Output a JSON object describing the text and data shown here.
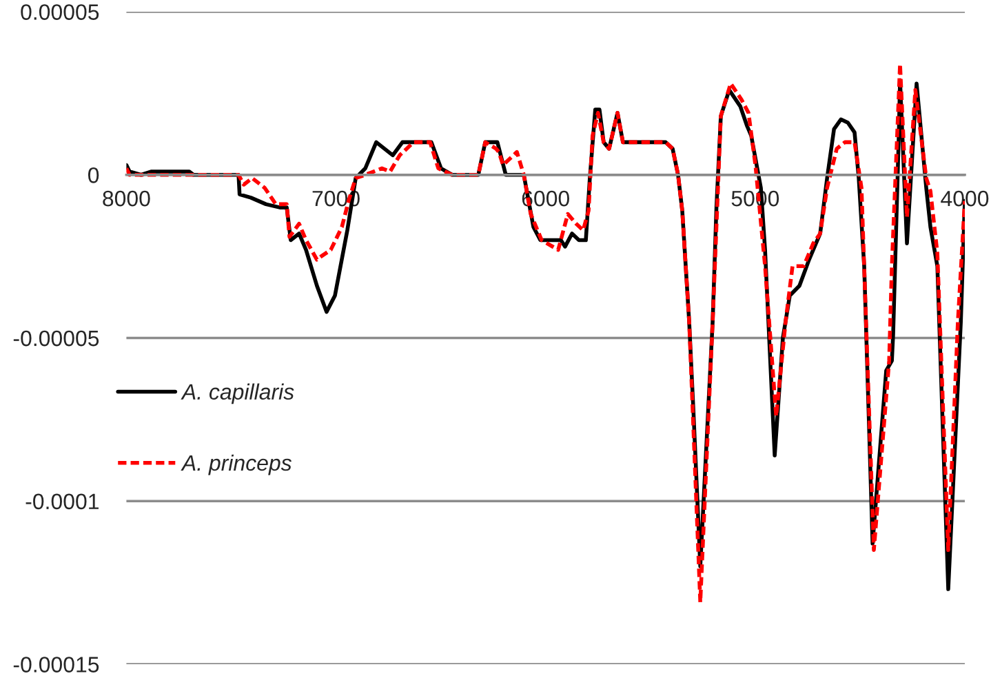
{
  "chart_data": {
    "type": "line",
    "xlim": [
      8000,
      4000
    ],
    "xticks": [
      8000,
      7000,
      6000,
      5000,
      4000
    ],
    "ylim": [
      -0.00015,
      5e-05
    ],
    "yticks": [
      {
        "value": 5e-05,
        "label": "0.00005"
      },
      0,
      {
        "value": -5e-05,
        "label": "-0.00005"
      },
      -0.0001,
      -0.00015
    ],
    "grid": "y",
    "legend": "left",
    "series": [
      {
        "name": "A. capillaris",
        "color": "#000000",
        "line_style": "solid",
        "x": [
          8000,
          7985,
          7930,
          7880,
          7700,
          7680,
          7465,
          7460,
          7406,
          7334,
          7268,
          7235,
          7216,
          7176,
          7143,
          7091,
          7045,
          7005,
          6946,
          6906,
          6860,
          6808,
          6729,
          6683,
          6545,
          6499,
          6446,
          6321,
          6288,
          6230,
          6190,
          6104,
          6058,
          6025,
          5927,
          5907,
          5874,
          5841,
          5808,
          5789,
          5763,
          5743,
          5723,
          5697,
          5657,
          5631,
          5427,
          5394,
          5368,
          5348,
          5315,
          5295,
          5262,
          5203,
          5185,
          5164,
          5124,
          5071,
          5039,
          5019,
          4973,
          4953,
          4907,
          4868,
          4835,
          4789,
          4743,
          4710,
          4690,
          4657,
          4624,
          4591,
          4558,
          4526,
          4506,
          4480,
          4440,
          4375,
          4348,
          4342,
          4315,
          4309,
          4276,
          4230,
          4184,
          4164,
          4131,
          4079,
          4019,
          4000
        ],
        "values": [
          3e-06,
          1e-06,
          0,
          1e-06,
          1e-06,
          0,
          0,
          -6e-06,
          -7e-06,
          -9e-06,
          -1e-05,
          -1e-05,
          -2e-05,
          -1.8e-05,
          -2.3e-05,
          -3.4e-05,
          -4.2e-05,
          -3.7e-05,
          -1.7e-05,
          -1e-06,
          2e-06,
          1e-05,
          6e-06,
          1e-05,
          1e-05,
          2e-06,
          0,
          0,
          1e-05,
          1e-05,
          0,
          0,
          -1.6e-05,
          -2e-05,
          -2e-05,
          -2.2e-05,
          -1.8e-05,
          -2e-05,
          -2e-05,
          -1e-06,
          2e-05,
          2e-05,
          1e-05,
          8e-06,
          1.9e-05,
          1e-05,
          1e-05,
          8e-06,
          0,
          -1.1e-05,
          -4.5e-05,
          -7.2e-05,
          -0.00012,
          -4.5e-05,
          -1e-05,
          1.8e-05,
          2.6e-05,
          2.1e-05,
          1.5e-05,
          1.2e-05,
          -4e-06,
          -2.3e-05,
          -8.6e-05,
          -5e-05,
          -3.7e-05,
          -3.4e-05,
          -2.6e-05,
          -2.1e-05,
          -1.8e-05,
          -1e-06,
          1.4e-05,
          1.7e-05,
          1.6e-05,
          1.3e-05,
          -1e-06,
          -2.8e-05,
          -0.000113,
          -6e-05,
          -5.7e-05,
          -4.9e-05,
          1.2e-05,
          2.9e-05,
          -2.1e-05,
          2.8e-05,
          -4e-06,
          -1.6e-05,
          -2.8e-05,
          -0.000127,
          -4.5e-05,
          -8e-06
        ]
      },
      {
        "name": "A. princeps",
        "color": "#ff0000",
        "line_style": "dashed",
        "x": [
          8000,
          7985,
          7900,
          7700,
          7465,
          7440,
          7400,
          7340,
          7287,
          7235,
          7222,
          7176,
          7143,
          7091,
          7071,
          7025,
          6972,
          6940,
          6906,
          6860,
          6781,
          6742,
          6696,
          6630,
          6551,
          6512,
          6446,
          6321,
          6288,
          6236,
          6223,
          6203,
          6137,
          6104,
          6071,
          6019,
          5940,
          5894,
          5854,
          5821,
          5795,
          5776,
          5750,
          5723,
          5697,
          5657,
          5631,
          5427,
          5394,
          5368,
          5348,
          5315,
          5262,
          5203,
          5164,
          5117,
          5065,
          5032,
          4999,
          4953,
          4900,
          4855,
          4822,
          4769,
          4723,
          4690,
          4657,
          4611,
          4572,
          4526,
          4493,
          4434,
          4361,
          4348,
          4309,
          4276,
          4236,
          4184,
          4164,
          4131,
          4079,
          4033,
          4000
        ],
        "values": [
          2e-06,
          0,
          0,
          0,
          0,
          -3e-06,
          -1e-06,
          -4e-06,
          -9e-06,
          -9e-06,
          -1.9e-05,
          -1.5e-05,
          -2e-05,
          -2.6e-05,
          -2.5e-05,
          -2.3e-05,
          -1.6e-05,
          -8e-06,
          -1e-06,
          0,
          2e-06,
          1e-06,
          6e-06,
          1e-05,
          1e-05,
          2e-06,
          0,
          0,
          1e-05,
          8e-06,
          7e-06,
          3e-06,
          7e-06,
          0,
          -1.2e-05,
          -2e-05,
          -2.3e-05,
          -1.2e-05,
          -1.5e-05,
          -1.7e-05,
          -1.1e-05,
          1.2e-05,
          1.9e-05,
          1e-05,
          8e-06,
          1.9e-05,
          1e-05,
          1e-05,
          8e-06,
          0,
          -1.1e-05,
          -4.5e-05,
          -0.000131,
          -4.5e-05,
          1.8e-05,
          2.8e-05,
          2.3e-05,
          1.9e-05,
          3e-06,
          -2.8e-05,
          -7.4e-05,
          -4.5e-05,
          -2.8e-05,
          -2.8e-05,
          -2.1e-05,
          -1.8e-05,
          -4e-06,
          8e-06,
          1e-05,
          1e-05,
          -4e-06,
          -0.000115,
          -5.7e-05,
          -2.8e-05,
          3.4e-05,
          -1.3e-05,
          2.6e-05,
          -1e-06,
          -5e-06,
          -2.4e-05,
          -0.000115,
          -4.5e-05,
          -8e-06
        ]
      }
    ]
  }
}
